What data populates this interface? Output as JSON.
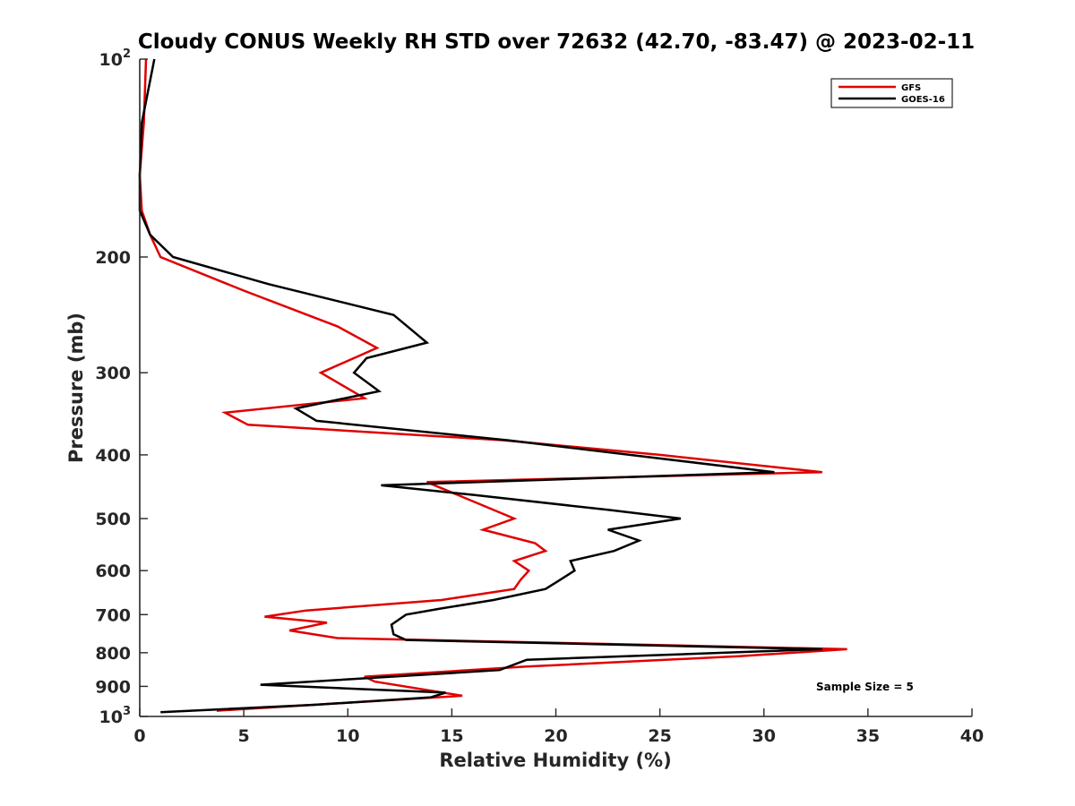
{
  "chart_data": {
    "type": "line",
    "title": "Cloudy CONUS Weekly RH STD over 72632 (42.70, -83.47) @ 2023-02-11",
    "xlabel": "Relative Humidity (%)",
    "ylabel": "Pressure (mb)",
    "xlim": [
      0,
      40
    ],
    "ylim": [
      100,
      1000
    ],
    "y_scale": "log",
    "y_reversed": true,
    "grid": false,
    "legend_position": "top-right",
    "x_ticks": [
      "0",
      "5",
      "10",
      "15",
      "20",
      "25",
      "30",
      "35",
      "40"
    ],
    "y_ticks": [
      {
        "value": 100,
        "base": "10",
        "exp": "2"
      },
      {
        "value": 200,
        "label": "200"
      },
      {
        "value": 300,
        "label": "300"
      },
      {
        "value": 400,
        "label": "400"
      },
      {
        "value": 500,
        "label": "500"
      },
      {
        "value": 600,
        "label": "600"
      },
      {
        "value": 700,
        "label": "700"
      },
      {
        "value": 800,
        "label": "800"
      },
      {
        "value": 900,
        "label": "900"
      },
      {
        "value": 1000,
        "base": "10",
        "exp": "3"
      }
    ],
    "annotation": "Sample Size = 5",
    "series": [
      {
        "name": "GFS",
        "color": "#e00000",
        "points": [
          [
            0.3,
            100
          ],
          [
            0.2,
            125
          ],
          [
            0.0,
            150
          ],
          [
            0.1,
            170
          ],
          [
            0.5,
            185
          ],
          [
            1.0,
            200
          ],
          [
            5.0,
            225
          ],
          [
            9.5,
            255
          ],
          [
            11.4,
            275
          ],
          [
            8.7,
            300
          ],
          [
            10.8,
            328
          ],
          [
            4.1,
            345
          ],
          [
            5.2,
            360
          ],
          [
            17.5,
            380
          ],
          [
            25.0,
            400
          ],
          [
            32.8,
            425
          ],
          [
            13.8,
            440
          ],
          [
            18.0,
            500
          ],
          [
            16.5,
            520
          ],
          [
            19.0,
            545
          ],
          [
            19.5,
            560
          ],
          [
            18.0,
            580
          ],
          [
            18.7,
            600
          ],
          [
            18.3,
            620
          ],
          [
            18.0,
            640
          ],
          [
            14.5,
            665
          ],
          [
            8.0,
            690
          ],
          [
            6.0,
            705
          ],
          [
            9.0,
            720
          ],
          [
            7.2,
            740
          ],
          [
            9.5,
            760
          ],
          [
            34.0,
            790
          ],
          [
            28.8,
            810
          ],
          [
            18.5,
            840
          ],
          [
            10.8,
            870
          ],
          [
            11.3,
            885
          ],
          [
            15.5,
            930
          ],
          [
            9.6,
            955
          ],
          [
            3.7,
            980
          ]
        ]
      },
      {
        "name": "GOES-16",
        "color": "#000000",
        "points": [
          [
            0.7,
            100
          ],
          [
            0.1,
            125
          ],
          [
            0.0,
            150
          ],
          [
            0.0,
            170
          ],
          [
            0.5,
            185
          ],
          [
            1.6,
            200
          ],
          [
            6.2,
            220
          ],
          [
            12.2,
            245
          ],
          [
            13.8,
            270
          ],
          [
            10.9,
            285
          ],
          [
            10.3,
            300
          ],
          [
            11.5,
            320
          ],
          [
            7.5,
            340
          ],
          [
            8.5,
            355
          ],
          [
            17.7,
            380
          ],
          [
            30.5,
            425
          ],
          [
            11.6,
            445
          ],
          [
            16.0,
            460
          ],
          [
            22.5,
            485
          ],
          [
            26.0,
            500
          ],
          [
            22.5,
            520
          ],
          [
            24.0,
            540
          ],
          [
            22.8,
            560
          ],
          [
            20.7,
            580
          ],
          [
            20.9,
            600
          ],
          [
            20.2,
            620
          ],
          [
            19.5,
            640
          ],
          [
            17.0,
            665
          ],
          [
            14.5,
            685
          ],
          [
            12.8,
            700
          ],
          [
            12.1,
            725
          ],
          [
            12.2,
            750
          ],
          [
            12.8,
            765
          ],
          [
            32.8,
            790
          ],
          [
            18.6,
            820
          ],
          [
            17.3,
            850
          ],
          [
            5.8,
            895
          ],
          [
            14.7,
            920
          ],
          [
            14.0,
            935
          ],
          [
            8.4,
            960
          ],
          [
            1.0,
            985
          ]
        ]
      }
    ]
  }
}
